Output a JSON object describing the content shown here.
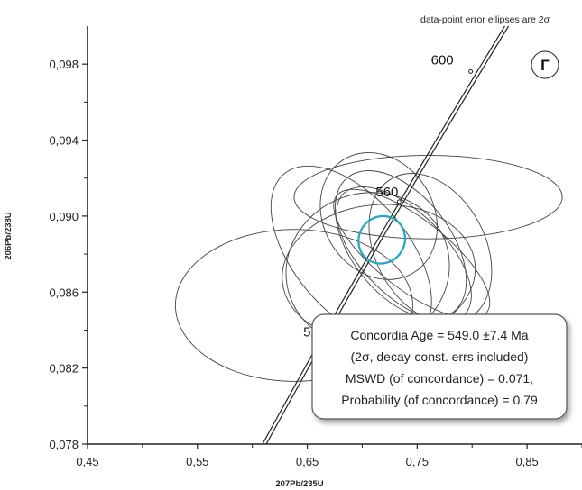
{
  "chart_data": {
    "type": "scatter",
    "subtype": "U-Pb concordia diagram with error ellipses",
    "header_note": "data-point error ellipses are 2σ",
    "panel_label": "Г",
    "xlabel": "207Pb/235U",
    "ylabel": "206Pb/238U",
    "xlim": [
      0.45,
      0.9
    ],
    "ylim": [
      0.078,
      0.1
    ],
    "x_ticks": [
      "0,45",
      "0,55",
      "0,65",
      "0,75",
      "0,85"
    ],
    "x_tick_values": [
      0.45,
      0.55,
      0.65,
      0.75,
      0.85
    ],
    "y_ticks": [
      "0,078",
      "0,082",
      "0,086",
      "0,090",
      "0,094",
      "0,098"
    ],
    "y_tick_values": [
      0.078,
      0.082,
      0.086,
      0.09,
      0.094,
      0.098
    ],
    "grid": false,
    "concordia_ages": [
      {
        "label": "600",
        "x": 0.7987,
        "y": 0.09761
      },
      {
        "label": "560",
        "x": 0.7336,
        "y": 0.09076
      },
      {
        "label": "520",
        "x": 0.671,
        "y": 0.08405
      }
    ],
    "age_labels_shown": [
      "600",
      "560",
      "52"
    ],
    "ellipses": [
      {
        "cx": 0.76,
        "cy": 0.091,
        "rx": 0.122,
        "ry": 0.0022,
        "angle": 0
      },
      {
        "cx": 0.638,
        "cy": 0.0853,
        "rx": 0.108,
        "ry": 0.004,
        "angle": 0
      },
      {
        "cx": 0.715,
        "cy": 0.087,
        "rx": 0.088,
        "ry": 0.0036,
        "angle": 5
      },
      {
        "cx": 0.762,
        "cy": 0.0883,
        "rx": 0.05,
        "ry": 0.0042,
        "angle": 28
      },
      {
        "cx": 0.715,
        "cy": 0.09,
        "rx": 0.05,
        "ry": 0.0035,
        "angle": 32
      },
      {
        "cx": 0.735,
        "cy": 0.0885,
        "rx": 0.045,
        "ry": 0.0045,
        "angle": 38
      },
      {
        "cx": 0.738,
        "cy": 0.088,
        "rx": 0.038,
        "ry": 0.0045,
        "angle": 45
      },
      {
        "cx": 0.69,
        "cy": 0.088,
        "rx": 0.052,
        "ry": 0.0055,
        "angle": 40
      },
      {
        "cx": 0.745,
        "cy": 0.088,
        "rx": 0.032,
        "ry": 0.005,
        "angle": 52
      },
      {
        "cx": 0.705,
        "cy": 0.0872,
        "rx": 0.075,
        "ry": 0.004,
        "angle": 20
      }
    ],
    "concordia_age_ellipse": {
      "cx": 0.7178,
      "cy": 0.08875,
      "rx": 0.022,
      "ry": 0.0012,
      "angle": 55
    },
    "result_box": {
      "lines": [
        "Concordia Age = 549.0 ±7.4 Ma",
        "(2σ, decay-const. errs included)",
        "MSWD (of concordance) = 0.071,",
        "Probability (of concordance) = 0.79"
      ]
    },
    "colors": {
      "ellipse": "#444444",
      "concordia": "#222222",
      "age_ellipse": "#2aa7c4",
      "axis": "#222222",
      "box_border": "#555555"
    }
  }
}
